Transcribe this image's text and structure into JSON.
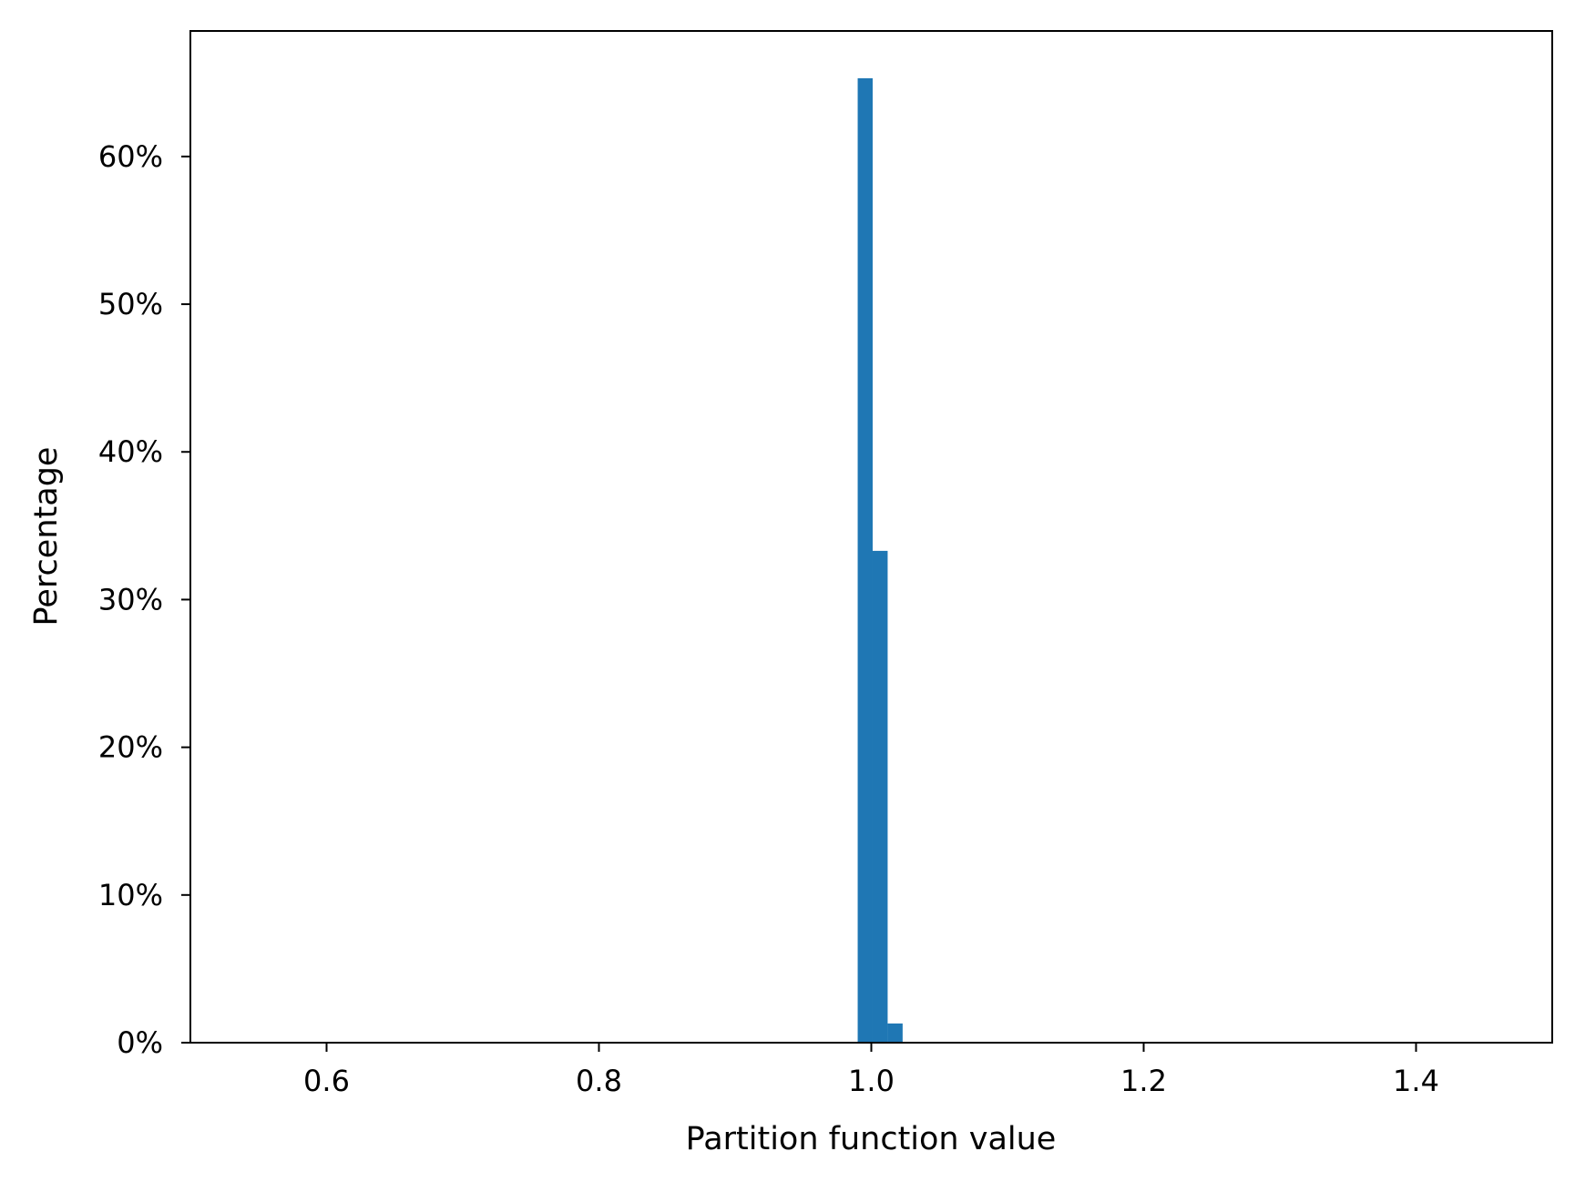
{
  "chart_data": {
    "type": "bar",
    "title": "",
    "xlabel": "Partition function value",
    "ylabel": "Percentage",
    "xlim": [
      0.5,
      1.5
    ],
    "ylim": [
      0,
      68.5
    ],
    "x_ticks": [
      {
        "value": 0.6,
        "label": "0.6"
      },
      {
        "value": 0.8,
        "label": "0.8"
      },
      {
        "value": 1.0,
        "label": "1.0"
      },
      {
        "value": 1.2,
        "label": "1.2"
      },
      {
        "value": 1.4,
        "label": "1.4"
      }
    ],
    "y_ticks": [
      {
        "value": 0,
        "label": "0%"
      },
      {
        "value": 10,
        "label": "10%"
      },
      {
        "value": 20,
        "label": "20%"
      },
      {
        "value": 30,
        "label": "30%"
      },
      {
        "value": 40,
        "label": "40%"
      },
      {
        "value": 50,
        "label": "50%"
      },
      {
        "value": 60,
        "label": "60%"
      }
    ],
    "bins": [
      {
        "x0": 0.99,
        "x1": 1.001,
        "value": 65.3
      },
      {
        "x0": 1.001,
        "x1": 1.012,
        "value": 33.3
      },
      {
        "x0": 1.012,
        "x1": 1.023,
        "value": 1.3
      }
    ],
    "bar_color": "#1f77b4",
    "grid": false,
    "legend": "none"
  }
}
